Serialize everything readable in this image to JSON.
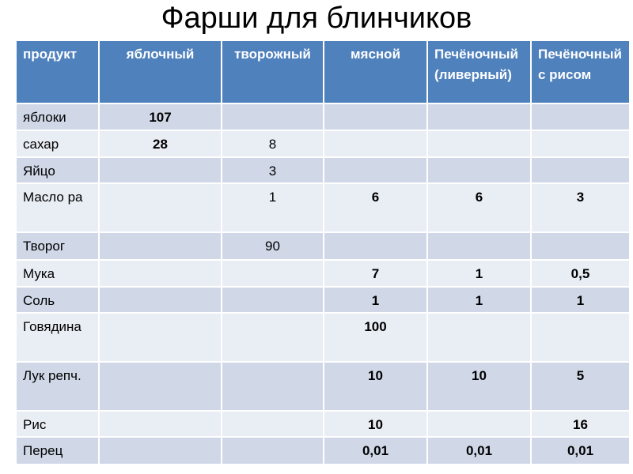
{
  "title": "Фарши для блинчиков",
  "table": {
    "headers": [
      "продукт",
      "яблочный",
      "творожный",
      "мясной",
      "Печёночный (ливерный)",
      "Печёночный с рисом"
    ],
    "rows": [
      {
        "product": "яблоки",
        "values": [
          "107",
          "",
          "",
          "",
          ""
        ]
      },
      {
        "product": "сахар",
        "values": [
          "28",
          "8",
          "",
          "",
          ""
        ]
      },
      {
        "product": "Яйцо",
        "values": [
          "",
          "3",
          "",
          "",
          ""
        ]
      },
      {
        "product": "Масло ра",
        "values": [
          "",
          "1",
          "6",
          "6",
          "3"
        ]
      },
      {
        "product": "Творог",
        "values": [
          "",
          "90",
          "",
          "",
          ""
        ]
      },
      {
        "product": "Мука",
        "values": [
          "",
          "",
          "7",
          "1",
          "0,5"
        ]
      },
      {
        "product": "Соль",
        "values": [
          "",
          "",
          "1",
          "1",
          "1"
        ]
      },
      {
        "product": "Говядина",
        "values": [
          "",
          "",
          "100",
          "",
          ""
        ]
      },
      {
        "product": "Лук репч.",
        "values": [
          "",
          "",
          "10",
          "10",
          "5"
        ]
      },
      {
        "product": "Рис",
        "values": [
          "",
          "",
          "10",
          "",
          "16"
        ]
      },
      {
        "product": "Перец",
        "values": [
          "",
          "",
          "0,01",
          "0,01",
          "0,01"
        ]
      }
    ]
  },
  "colors": {
    "header": "#4f81bd",
    "row_dark": "#d0d8e8",
    "row_light": "#e9edf4"
  }
}
